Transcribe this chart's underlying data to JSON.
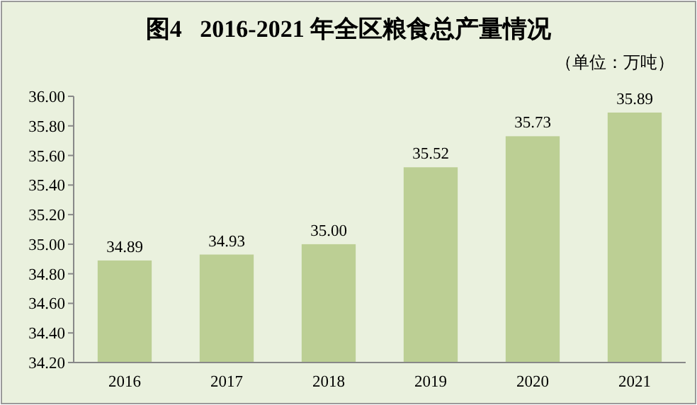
{
  "chart_data": {
    "type": "bar",
    "title": "图4   2016-2021 年全区粮食总产量情况",
    "subtitle": "（单位：万吨）",
    "categories": [
      "2016",
      "2017",
      "2018",
      "2019",
      "2020",
      "2021"
    ],
    "values": [
      34.89,
      34.93,
      35.0,
      35.52,
      35.73,
      35.89
    ],
    "value_labels": [
      "34.89",
      "34.93",
      "35.00",
      "35.52",
      "35.73",
      "35.89"
    ],
    "color": "#bccf94",
    "ylim": [
      34.2,
      36.0
    ],
    "yticks": [
      {
        "value": 34.2,
        "label": "34.20"
      },
      {
        "value": 34.4,
        "label": "34.40"
      },
      {
        "value": 34.6,
        "label": "34.60"
      },
      {
        "value": 34.8,
        "label": "34.80"
      },
      {
        "value": 35.0,
        "label": "35.00"
      },
      {
        "value": 35.2,
        "label": "35.20"
      },
      {
        "value": 35.4,
        "label": "35.40"
      },
      {
        "value": 35.6,
        "label": "35.60"
      },
      {
        "value": 35.8,
        "label": "35.80"
      },
      {
        "value": 36.0,
        "label": "36.00"
      }
    ],
    "grid": false
  }
}
